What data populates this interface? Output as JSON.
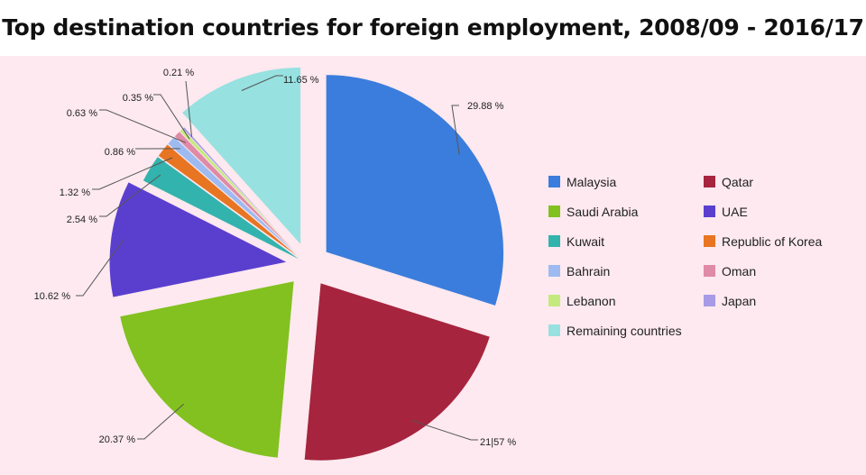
{
  "title": "Top destination countries for foreign employment, 2008/09 - 2016/17",
  "chart_data": {
    "type": "pie",
    "title": "Top destination countries for foreign employment, 2008/09 - 2016/17",
    "exploded": true,
    "legend_position": "right",
    "slices": [
      {
        "label": "Malaysia",
        "value": 29.88,
        "value_label": "29.88 %",
        "color": "#3b7ddc"
      },
      {
        "label": "Qatar",
        "value": 21.57,
        "value_label": "21|57 %",
        "color": "#a6243e"
      },
      {
        "label": "Saudi Arabia",
        "value": 20.37,
        "value_label": "20.37 %",
        "color": "#82c11f"
      },
      {
        "label": "UAE",
        "value": 10.62,
        "value_label": "10.62 %",
        "color": "#5a3fcf"
      },
      {
        "label": "Kuwait",
        "value": 2.54,
        "value_label": "2.54 %",
        "color": "#33b3ad"
      },
      {
        "label": "Republic of Korea",
        "value": 1.32,
        "value_label": "1.32 %",
        "color": "#e77522"
      },
      {
        "label": "Bahrain",
        "value": 0.86,
        "value_label": "0.86 %",
        "color": "#9dbbf0"
      },
      {
        "label": "Oman",
        "value": 0.63,
        "value_label": "0.63 %",
        "color": "#df8aa6"
      },
      {
        "label": "Lebanon",
        "value": 0.35,
        "value_label": "0.35 %",
        "color": "#c4ea7e"
      },
      {
        "label": "Japan",
        "value": 0.21,
        "value_label": "0.21 %",
        "color": "#a79ae6"
      },
      {
        "label": "Remaining countries",
        "value": 11.65,
        "value_label": "11.65 %",
        "color": "#97e1e1"
      }
    ]
  }
}
